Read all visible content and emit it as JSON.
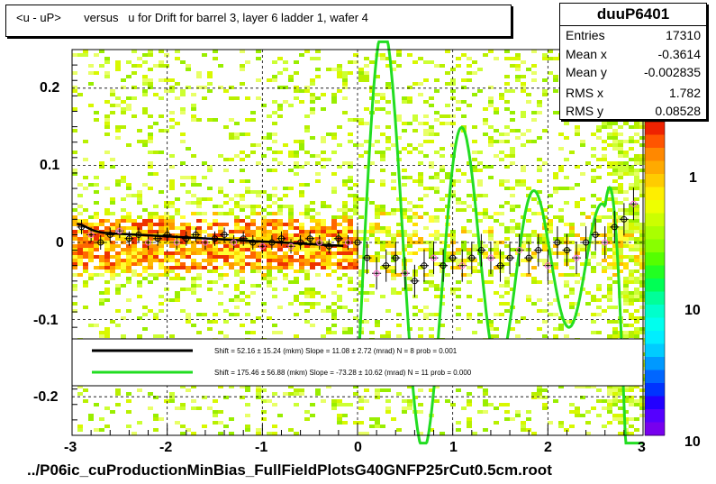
{
  "title": "<u - uP>       versus   u for Drift for barrel 3, layer 6 ladder 1, wafer 4",
  "footer": "../P06ic_cuProductionMinBias_FullFieldPlotsG40GNFP25rCut0.5cm.root",
  "stats": {
    "name": "duuP6401",
    "rows": [
      {
        "key": "Entries",
        "value": "17310"
      },
      {
        "key": "Mean x",
        "value": "-0.3614"
      },
      {
        "key": "Mean y",
        "value": "-0.002835"
      },
      {
        "key": "RMS x",
        "value": "1.782"
      },
      {
        "key": "RMS y",
        "value": "0.08528"
      }
    ]
  },
  "legend": {
    "black": "Shift =    52.16 ± 15.24 (mkm) Slope =    11.08 ± 2.72 (mrad)  N = 8 prob = 0.001",
    "green": "Shift =   175.46 ± 56.88 (mkm) Slope =   -73.28 ± 10.62 (mrad)  N = 11 prob = 0.000"
  },
  "colors": {
    "black_fit": "#000000",
    "green_fit": "#22dd22",
    "profile_marker": "#000000",
    "profile_alt": "#ff66cc"
  },
  "chart_data": {
    "type": "heatmap",
    "title": "<u - uP>       versus   u for Drift for barrel 3, layer 6 ladder 1, wafer 4",
    "xlim": [
      -3,
      3
    ],
    "ylim": [
      -0.25,
      0.25
    ],
    "x_ticks": [
      "-3",
      "-2",
      "-1",
      "0",
      "1",
      "2",
      "3"
    ],
    "y_ticks": [
      "-0.2",
      "-0.1",
      "0",
      "0.1",
      "0.2"
    ],
    "z_scale": "log",
    "z_ticks": [
      "1",
      "10",
      "10"
    ],
    "grid": true,
    "profile": {
      "x": [
        -2.9,
        -2.8,
        -2.7,
        -2.6,
        -2.5,
        -2.4,
        -2.3,
        -2.2,
        -2.1,
        -2.0,
        -1.9,
        -1.8,
        -1.7,
        -1.6,
        -1.5,
        -1.4,
        -1.3,
        -1.2,
        -1.1,
        -1.0,
        -0.9,
        -0.8,
        -0.7,
        -0.6,
        -0.5,
        -0.4,
        -0.3,
        -0.2,
        -0.1,
        0.0,
        0.1,
        0.2,
        0.3,
        0.4,
        0.5,
        0.6,
        0.7,
        0.8,
        0.9,
        1.0,
        1.1,
        1.2,
        1.3,
        1.4,
        1.5,
        1.6,
        1.7,
        1.8,
        1.9,
        2.0,
        2.1,
        2.2,
        2.3,
        2.4,
        2.5,
        2.6,
        2.7,
        2.8,
        2.9
      ],
      "y": [
        0.02,
        0.01,
        0.0,
        0.01,
        0.015,
        0.005,
        0.01,
        0.0,
        0.005,
        0.01,
        0.0,
        0.005,
        0.01,
        0.0,
        0.005,
        0.01,
        0.0,
        0.005,
        0.0,
        -0.005,
        0.0,
        0.005,
        -0.005,
        0.0,
        0.005,
        0.0,
        -0.005,
        0.005,
        0.0,
        0.0,
        -0.02,
        -0.04,
        -0.03,
        -0.02,
        -0.04,
        -0.05,
        -0.03,
        -0.02,
        -0.03,
        -0.02,
        -0.03,
        -0.02,
        -0.01,
        -0.02,
        -0.03,
        -0.02,
        -0.01,
        -0.02,
        -0.01,
        -0.03,
        0.0,
        -0.01,
        -0.02,
        0.0,
        0.01,
        0.0,
        0.02,
        0.03,
        0.05
      ]
    },
    "fits": [
      {
        "color": "black",
        "x_range": [
          -2.95,
          -0.15
        ],
        "shift_mkm": 52.16,
        "slope_mrad": 11.08
      },
      {
        "color": "green",
        "x_range": [
          0.0,
          3.0
        ],
        "shift_mkm": 175.46,
        "slope_mrad": -73.28
      }
    ]
  }
}
